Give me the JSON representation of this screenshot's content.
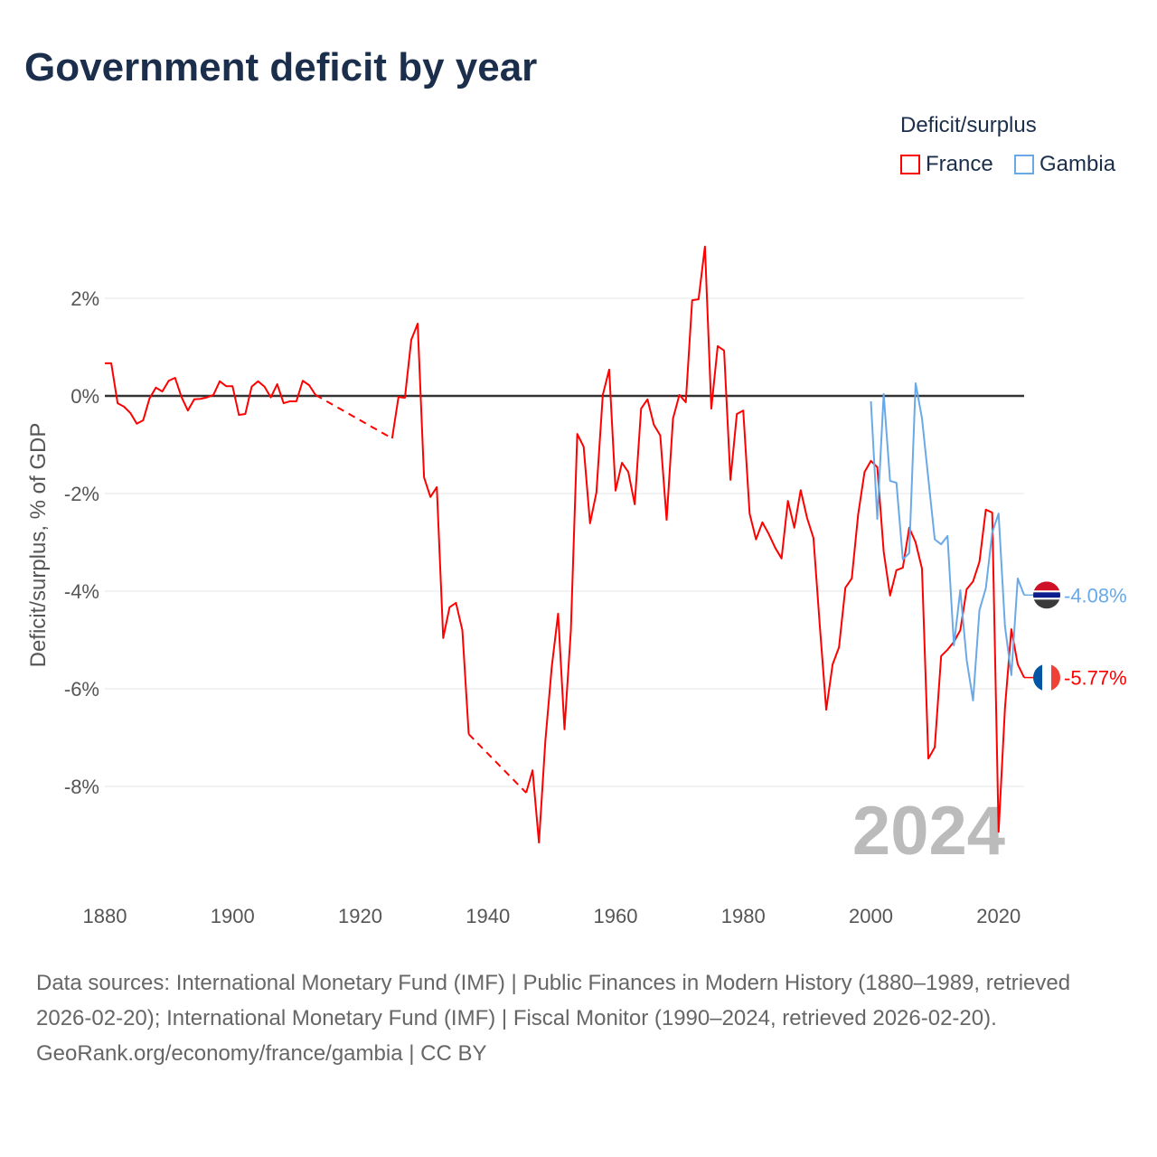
{
  "title": "Government deficit by year",
  "legend": {
    "title": "Deficit/surplus",
    "items": [
      "France",
      "Gambia"
    ]
  },
  "colors": {
    "France": "#ff0000",
    "Gambia": "#6aa9e8"
  },
  "year_watermark": "2024",
  "footer": {
    "sources": "Data sources: International Monetary Fund (IMF) | Public Finances in Modern History (1880–1989, retrieved 2026-02-20); International Monetary Fund (IMF) | Fiscal Monitor (1990–2024, retrieved 2026-02-20).",
    "credit": "GeoRank.org/economy/france/gambia | CC BY"
  },
  "chart_data": {
    "type": "line",
    "title": "Government deficit by year",
    "xlabel": "",
    "ylabel": "Deficit/surplus, % of GDP",
    "xlim": [
      1880,
      2024
    ],
    "ylim": [
      -10,
      3.3
    ],
    "xticks": [
      "1880",
      "1900",
      "1920",
      "1940",
      "1960",
      "1980",
      "2000",
      "2020"
    ],
    "xtick_values": [
      1880,
      1900,
      1920,
      1940,
      1960,
      1980,
      2000,
      2020
    ],
    "yticks": [
      "2%",
      "0%",
      "-2%",
      "-4%",
      "-6%",
      "-8%"
    ],
    "ytick_values": [
      2,
      0,
      -2,
      -4,
      -6,
      -8
    ],
    "grid": true,
    "legend_position": "top-right",
    "end_labels": {
      "France": "-5.77%",
      "Gambia": "-4.08%"
    },
    "series": [
      {
        "name": "France",
        "start_year": 1880,
        "values": [
          0.67,
          0.67,
          -0.15,
          -0.22,
          -0.35,
          -0.57,
          -0.5,
          -0.05,
          0.17,
          0.09,
          0.31,
          0.37,
          -0.02,
          -0.3,
          -0.07,
          -0.06,
          -0.03,
          0.02,
          0.3,
          0.2,
          0.2,
          -0.39,
          -0.37,
          0.19,
          0.3,
          0.19,
          -0.03,
          0.24,
          -0.15,
          -0.11,
          -0.11,
          0.31,
          0.22,
          0.02,
          null,
          null,
          null,
          null,
          null,
          null,
          null,
          null,
          null,
          null,
          null,
          -0.87,
          -0.02,
          -0.04,
          1.15,
          1.48,
          -1.67,
          -2.07,
          -1.87,
          -4.96,
          -4.33,
          -4.24,
          -4.8,
          -6.93,
          null,
          null,
          null,
          null,
          null,
          null,
          null,
          null,
          -8.13,
          -7.67,
          -9.15,
          -7.07,
          -5.56,
          -4.46,
          -6.83,
          -4.8,
          -0.78,
          -1.04,
          -2.61,
          -1.98,
          0.02,
          0.54,
          -1.94,
          -1.37,
          -1.56,
          -2.22,
          -0.26,
          -0.07,
          -0.59,
          -0.81,
          -2.54,
          -0.46,
          0.02,
          -0.13,
          1.96,
          1.98,
          3.06,
          -0.26,
          1.02,
          0.93,
          -1.72,
          -0.37,
          -0.3,
          -2.41,
          -2.94,
          -2.59,
          -2.83,
          -3.11,
          -3.33,
          -2.15,
          -2.7,
          -1.93,
          -2.5,
          -2.91,
          -4.72,
          -6.43,
          -5.5,
          -5.15,
          -3.93,
          -3.74,
          -2.43,
          -1.56,
          -1.33,
          -1.46,
          -3.19,
          -4.09,
          -3.57,
          -3.52,
          -2.7,
          -3.0,
          -3.54,
          -7.43,
          -7.2,
          -5.33,
          -5.2,
          -5.04,
          -4.8,
          -3.96,
          -3.8,
          -3.4,
          -2.33,
          -2.39,
          -8.93,
          -6.39,
          -4.78,
          -5.5,
          -5.77
        ]
      },
      {
        "name": "Gambia",
        "start_year": 2000,
        "values": [
          -0.11,
          -2.52,
          0.04,
          -1.74,
          -1.78,
          -3.35,
          -3.22,
          0.26,
          -0.46,
          -1.7,
          -2.94,
          -3.04,
          -2.87,
          -5.11,
          -3.98,
          -5.41,
          -6.24,
          -4.39,
          -3.94,
          -2.8,
          -2.41,
          -4.72,
          -5.72,
          -3.74,
          -4.08
        ]
      }
    ]
  }
}
